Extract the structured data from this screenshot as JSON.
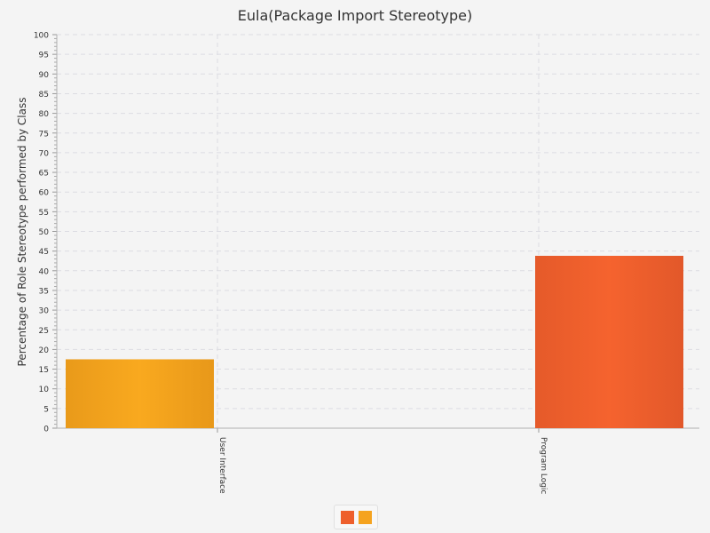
{
  "chart_data": {
    "type": "bar",
    "title": "Eula(Package Import Stereotype)",
    "xlabel": "",
    "ylabel": "Percentage of Role Stereotype performed by Class",
    "categories": [
      "User Interface",
      "Program Logic"
    ],
    "series": [
      {
        "values": [
          17.5,
          0
        ],
        "color": "#f5a31f"
      },
      {
        "values": [
          0,
          43.8
        ],
        "color": "#ee5f2c"
      }
    ],
    "ylim": [
      0,
      100
    ],
    "ytick_step": 5,
    "grid": true,
    "legend": "bottom-center"
  }
}
